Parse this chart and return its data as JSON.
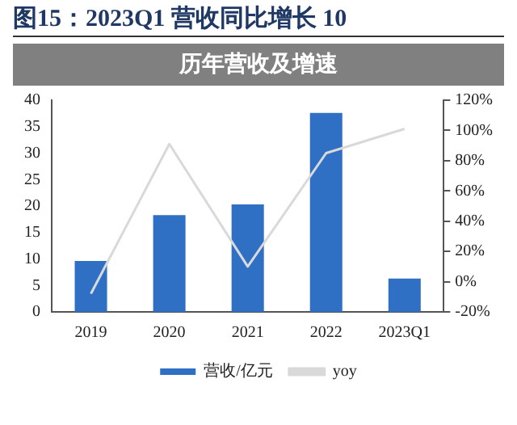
{
  "chart_data": {
    "type": "bar",
    "title": "图15：2023Q1 营收同比增长 10",
    "subtitle": "历年营收及增速",
    "categories": [
      "2019",
      "2020",
      "2021",
      "2022",
      "2023Q1"
    ],
    "series": [
      {
        "name": "营收/亿元",
        "color": "#3070c4",
        "values": [
          9.6,
          18.3,
          20.3,
          37.6,
          6.3
        ]
      },
      {
        "name": "yoy",
        "type": "line",
        "axis": "y2",
        "color": "#d9d9d9",
        "values": [
          -8,
          91,
          10,
          85,
          101
        ]
      }
    ],
    "ylim": [
      0,
      40
    ],
    "yticks": [
      0,
      5,
      10,
      15,
      20,
      25,
      30,
      35,
      40
    ],
    "y2lim": [
      -20,
      120
    ],
    "y2ticks": [
      {
        "value": -20,
        "label": "-20%"
      },
      {
        "value": 0,
        "label": "0%"
      },
      {
        "value": 20,
        "label": "20%"
      },
      {
        "value": 40,
        "label": "40%"
      },
      {
        "value": 60,
        "label": "60%"
      },
      {
        "value": 80,
        "label": "80%"
      },
      {
        "value": 100,
        "label": "100%"
      },
      {
        "value": 120,
        "label": "120%"
      }
    ],
    "grid": false,
    "legend": "bottom",
    "marker": "none"
  }
}
